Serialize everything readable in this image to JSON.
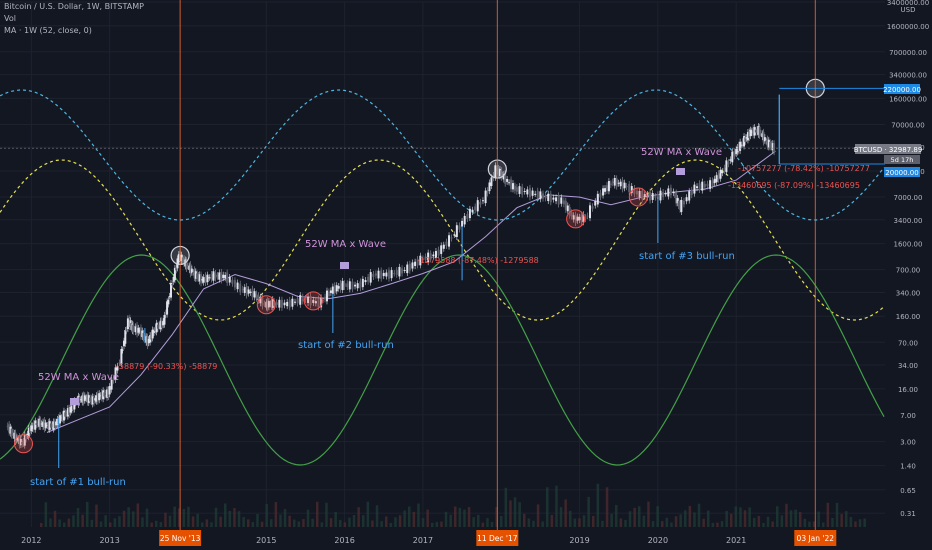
{
  "header": {
    "symbol_line": "Bitcoin / U.S. Dollar, 1W, BITSTAMP",
    "vol_label": "Vol",
    "ma_label": "MA · 1W (52, close, 0)"
  },
  "colors": {
    "background": "#131722",
    "grid": "#1e222d",
    "candle_up": "#26a69a",
    "candle_down": "#ef5350",
    "ma_line": "#b39ddb",
    "wave_cyan": "#4db6e2",
    "wave_yellow": "#e6e04f",
    "wave_green": "#43a047",
    "marker_orange": "#ff6d2e",
    "annotation_purple": "#ce93d8",
    "annotation_blue": "#42a5f5",
    "drop_red": "#ef5350",
    "price_tag": "#1e88e5",
    "current_tag": "#787b86"
  },
  "annotations": {
    "wave1_label": "52W MA x Wave",
    "wave2_label": "52W MA x Wave",
    "wave3_label": "52W MA x Wave",
    "bull1": "start of #1 bull-run",
    "bull2": "start of #2 bull-run",
    "bull3": "start of #3 bull-run",
    "drop1": "-58879 (-90.33%) -58879",
    "drop2": "-1279588 (-87.48%) -1279588",
    "drop3a": "-10757277 (-78.42%) -10757277",
    "drop3b": "-13460695 (-87.09%) -13460695"
  },
  "price_tags": {
    "target": "220000.00",
    "current": "BTCUSD · 32987.89",
    "current_sub": "5d 17h",
    "low_target": "20000.00",
    "currency": "USD"
  },
  "chart_data": {
    "type": "line",
    "symbol": "BTCUSD",
    "xlabel": "",
    "ylabel": "",
    "yscale": "log",
    "ylim": [
      0.2,
      3400000
    ],
    "xlim": [
      2011.6,
      2022.9
    ],
    "x_ticks": [
      "2012",
      "2013",
      "2015",
      "2016",
      "2017",
      "2019",
      "2020",
      "2021"
    ],
    "x_tick_values": [
      2012.0,
      2013.0,
      2015.0,
      2016.0,
      2017.0,
      2019.0,
      2020.0,
      2021.0
    ],
    "highlighted_dates": [
      {
        "label": "25 Nov '13",
        "x": 2013.9
      },
      {
        "label": "11 Dec '17",
        "x": 2017.95
      },
      {
        "label": "03 Jan '22",
        "x": 2022.01
      }
    ],
    "y_ticks": [
      "3400000.00",
      "1600000.00",
      "700000.00",
      "340000.00",
      "160000.00",
      "70000.00",
      "34000.00",
      "16000.00",
      "7000.00",
      "3400.00",
      "1600.00",
      "700.00",
      "340.00",
      "160.00",
      "70.00",
      "34.00",
      "16.00",
      "7.00",
      "3.00",
      "1.40",
      "0.65",
      "0.31"
    ],
    "y_tick_values": [
      3400000,
      1600000,
      700000,
      340000,
      160000,
      70000,
      34000,
      16000,
      7000,
      3400,
      1600,
      700,
      340,
      160,
      70,
      34,
      16,
      7,
      3,
      1.4,
      0.65,
      0.31
    ],
    "series": [
      {
        "name": "BTCUSD",
        "x": [
          2011.7,
          2011.8,
          2011.9,
          2012.0,
          2012.1,
          2012.2,
          2012.3,
          2012.4,
          2012.5,
          2012.6,
          2012.7,
          2012.8,
          2012.9,
          2013.0,
          2013.15,
          2013.25,
          2013.3,
          2013.4,
          2013.5,
          2013.6,
          2013.7,
          2013.8,
          2013.9,
          2014.0,
          2014.1,
          2014.2,
          2014.35,
          2014.5,
          2014.7,
          2014.85,
          2015.0,
          2015.1,
          2015.3,
          2015.5,
          2015.7,
          2015.85,
          2016.0,
          2016.2,
          2016.4,
          2016.6,
          2016.8,
          2017.0,
          2017.2,
          2017.4,
          2017.6,
          2017.8,
          2017.95,
          2018.05,
          2018.2,
          2018.4,
          2018.6,
          2018.8,
          2018.95,
          2019.1,
          2019.3,
          2019.45,
          2019.6,
          2019.8,
          2020.0,
          2020.2,
          2020.3,
          2020.5,
          2020.7,
          2020.85,
          2021.0,
          2021.1,
          2021.2,
          2021.3,
          2021.4,
          2021.5
        ],
        "y": [
          5,
          3.5,
          2.8,
          4.5,
          5.5,
          5,
          5,
          6.5,
          8,
          11,
          12,
          11,
          13,
          14,
          40,
          140,
          110,
          100,
          70,
          110,
          130,
          400,
          1100,
          800,
          600,
          500,
          580,
          560,
          380,
          330,
          230,
          240,
          235,
          280,
          240,
          360,
          430,
          420,
          600,
          600,
          700,
          960,
          1150,
          2000,
          4000,
          6500,
          17000,
          13000,
          9000,
          8000,
          7000,
          6200,
          3500,
          3600,
          8000,
          11500,
          10000,
          7500,
          7000,
          8500,
          5000,
          9500,
          10500,
          16000,
          29000,
          40000,
          55000,
          58000,
          40000,
          33000
        ]
      },
      {
        "name": "MA",
        "x": [
          2012.2,
          2012.6,
          2013.0,
          2013.4,
          2013.8,
          2014.2,
          2014.6,
          2015.0,
          2015.4,
          2015.8,
          2016.2,
          2016.6,
          2017.0,
          2017.4,
          2017.8,
          2018.2,
          2018.6,
          2019.0,
          2019.4,
          2019.8,
          2020.2,
          2020.6,
          2021.0,
          2021.5
        ],
        "y": [
          4,
          6,
          9,
          25,
          90,
          380,
          600,
          450,
          300,
          280,
          330,
          450,
          620,
          900,
          2000,
          5000,
          7500,
          7000,
          5500,
          7000,
          8200,
          9000,
          12000,
          30000
        ]
      }
    ],
    "drawdowns": [
      {
        "label": "-58879 (-90.33%) -58879",
        "from": [
          2013.45,
          110
        ],
        "to": [
          2013.45,
          70
        ]
      },
      {
        "label": "-1279588 (-87.48%) -1279588",
        "from": [
          2017.5,
          2800
        ],
        "to": [
          2017.5,
          500
        ]
      },
      {
        "label": "-10757277 (-78.42%) -10757277",
        "from": [
          2021.55,
          180000
        ],
        "to": [
          2021.55,
          20000
        ]
      },
      {
        "label": "-13460695 (-87.09%) -13460695",
        "from": [
          2021.55,
          180000
        ],
        "to": [
          2021.55,
          20000
        ]
      }
    ],
    "price_levels": [
      220000,
      20000
    ],
    "current_price": 32987.89,
    "grid": true,
    "legend": "none"
  }
}
